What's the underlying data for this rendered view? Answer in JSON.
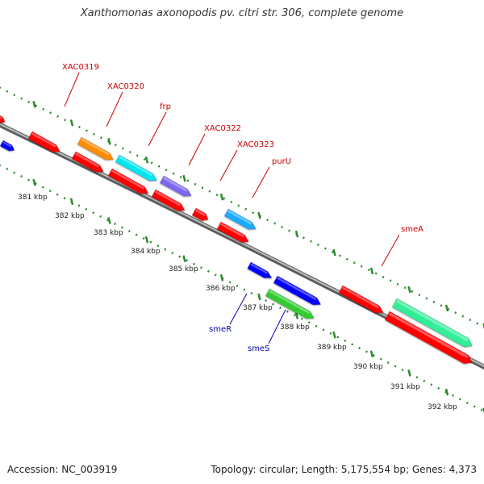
{
  "title": "Xanthomonas axonopodis pv. citri str. 306, complete genome",
  "footer": {
    "accession": "Accession: NC_003919",
    "summary": "Topology: circular; Length: 5,175,554 bp; Genes: 4,373"
  },
  "colors": {
    "backbone": "#8c8c8c",
    "tick": "#2e8b2e",
    "label_upper": "#cc0000",
    "label_lower": "#0000aa"
  },
  "ruler_ticks": [
    {
      "label": "381 kbp"
    },
    {
      "label": "382 kbp"
    },
    {
      "label": "383 kbp"
    },
    {
      "label": "384 kbp"
    },
    {
      "label": "385 kbp"
    },
    {
      "label": "386 kbp"
    },
    {
      "label": "387 kbp"
    },
    {
      "label": "388 kbp"
    },
    {
      "label": "389 kbp"
    },
    {
      "label": "390 kbp"
    },
    {
      "label": "391 kbp"
    },
    {
      "label": "392 kbp"
    }
  ],
  "gene_labels": [
    {
      "name": "XAC0319",
      "strand": "upper"
    },
    {
      "name": "XAC0320",
      "strand": "upper"
    },
    {
      "name": "frp",
      "strand": "upper"
    },
    {
      "name": "XAC0322",
      "strand": "upper"
    },
    {
      "name": "XAC0323",
      "strand": "upper"
    },
    {
      "name": "purU",
      "strand": "upper"
    },
    {
      "name": "smeA",
      "strand": "upper"
    },
    {
      "name": "smeR",
      "strand": "lower"
    },
    {
      "name": "smeS",
      "strand": "lower"
    }
  ],
  "features": [
    {
      "color": "#ff0000",
      "dir": "right"
    },
    {
      "color": "#0000ff",
      "dir": "right"
    },
    {
      "color": "#ff0000",
      "dir": "right"
    },
    {
      "color": "#ff8c00",
      "dir": "right"
    },
    {
      "color": "#ff0000",
      "dir": "right"
    },
    {
      "color": "#00e5ee",
      "dir": "right"
    },
    {
      "color": "#ff0000",
      "dir": "right"
    },
    {
      "color": "#7b68ee",
      "dir": "right"
    },
    {
      "color": "#ff0000",
      "dir": "right"
    },
    {
      "color": "#ff0000",
      "dir": "right"
    },
    {
      "color": "#1eaaff",
      "dir": "right"
    },
    {
      "color": "#ff0000",
      "dir": "right"
    },
    {
      "color": "#0000ff",
      "dir": "right"
    },
    {
      "color": "#0000ff",
      "dir": "right"
    },
    {
      "color": "#33cc33",
      "dir": "right"
    },
    {
      "color": "#ff0000",
      "dir": "right"
    },
    {
      "color": "#33ee99",
      "dir": "right"
    },
    {
      "color": "#ff0000",
      "dir": "right"
    }
  ]
}
